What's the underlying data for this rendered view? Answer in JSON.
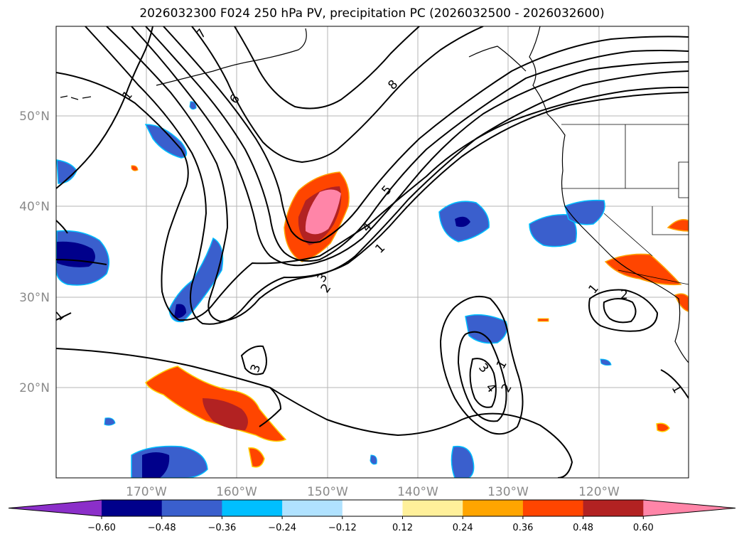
{
  "title": "2026032300 F024 250 hPa PV, precipitation PC (2026032500 - 2026032600)",
  "map": {
    "lat_labels": [
      "50°N",
      "40°N",
      "30°N",
      "20°N"
    ],
    "lon_labels": [
      "170°W",
      "160°W",
      "150°W",
      "140°W",
      "130°W",
      "120°W"
    ],
    "contour_labels": [
      "1",
      "1",
      "1",
      "1",
      "1",
      "1",
      "2",
      "2",
      "2",
      "3",
      "3",
      "3",
      "4",
      "4",
      "5",
      "6",
      "7",
      "8"
    ]
  },
  "colorbar": {
    "ticks": [
      "−0.60",
      "−0.48",
      "−0.36",
      "−0.24",
      "−0.12",
      "0.12",
      "0.24",
      "0.36",
      "0.48",
      "0.60"
    ],
    "colors": [
      "#8b2fc9",
      "#00008b",
      "#3a5fcd",
      "#00bfff",
      "#b0e2ff",
      "#ffffff",
      "#fff09a",
      "#ffa500",
      "#ff4500",
      "#b22222",
      "#ff85a8"
    ]
  }
}
